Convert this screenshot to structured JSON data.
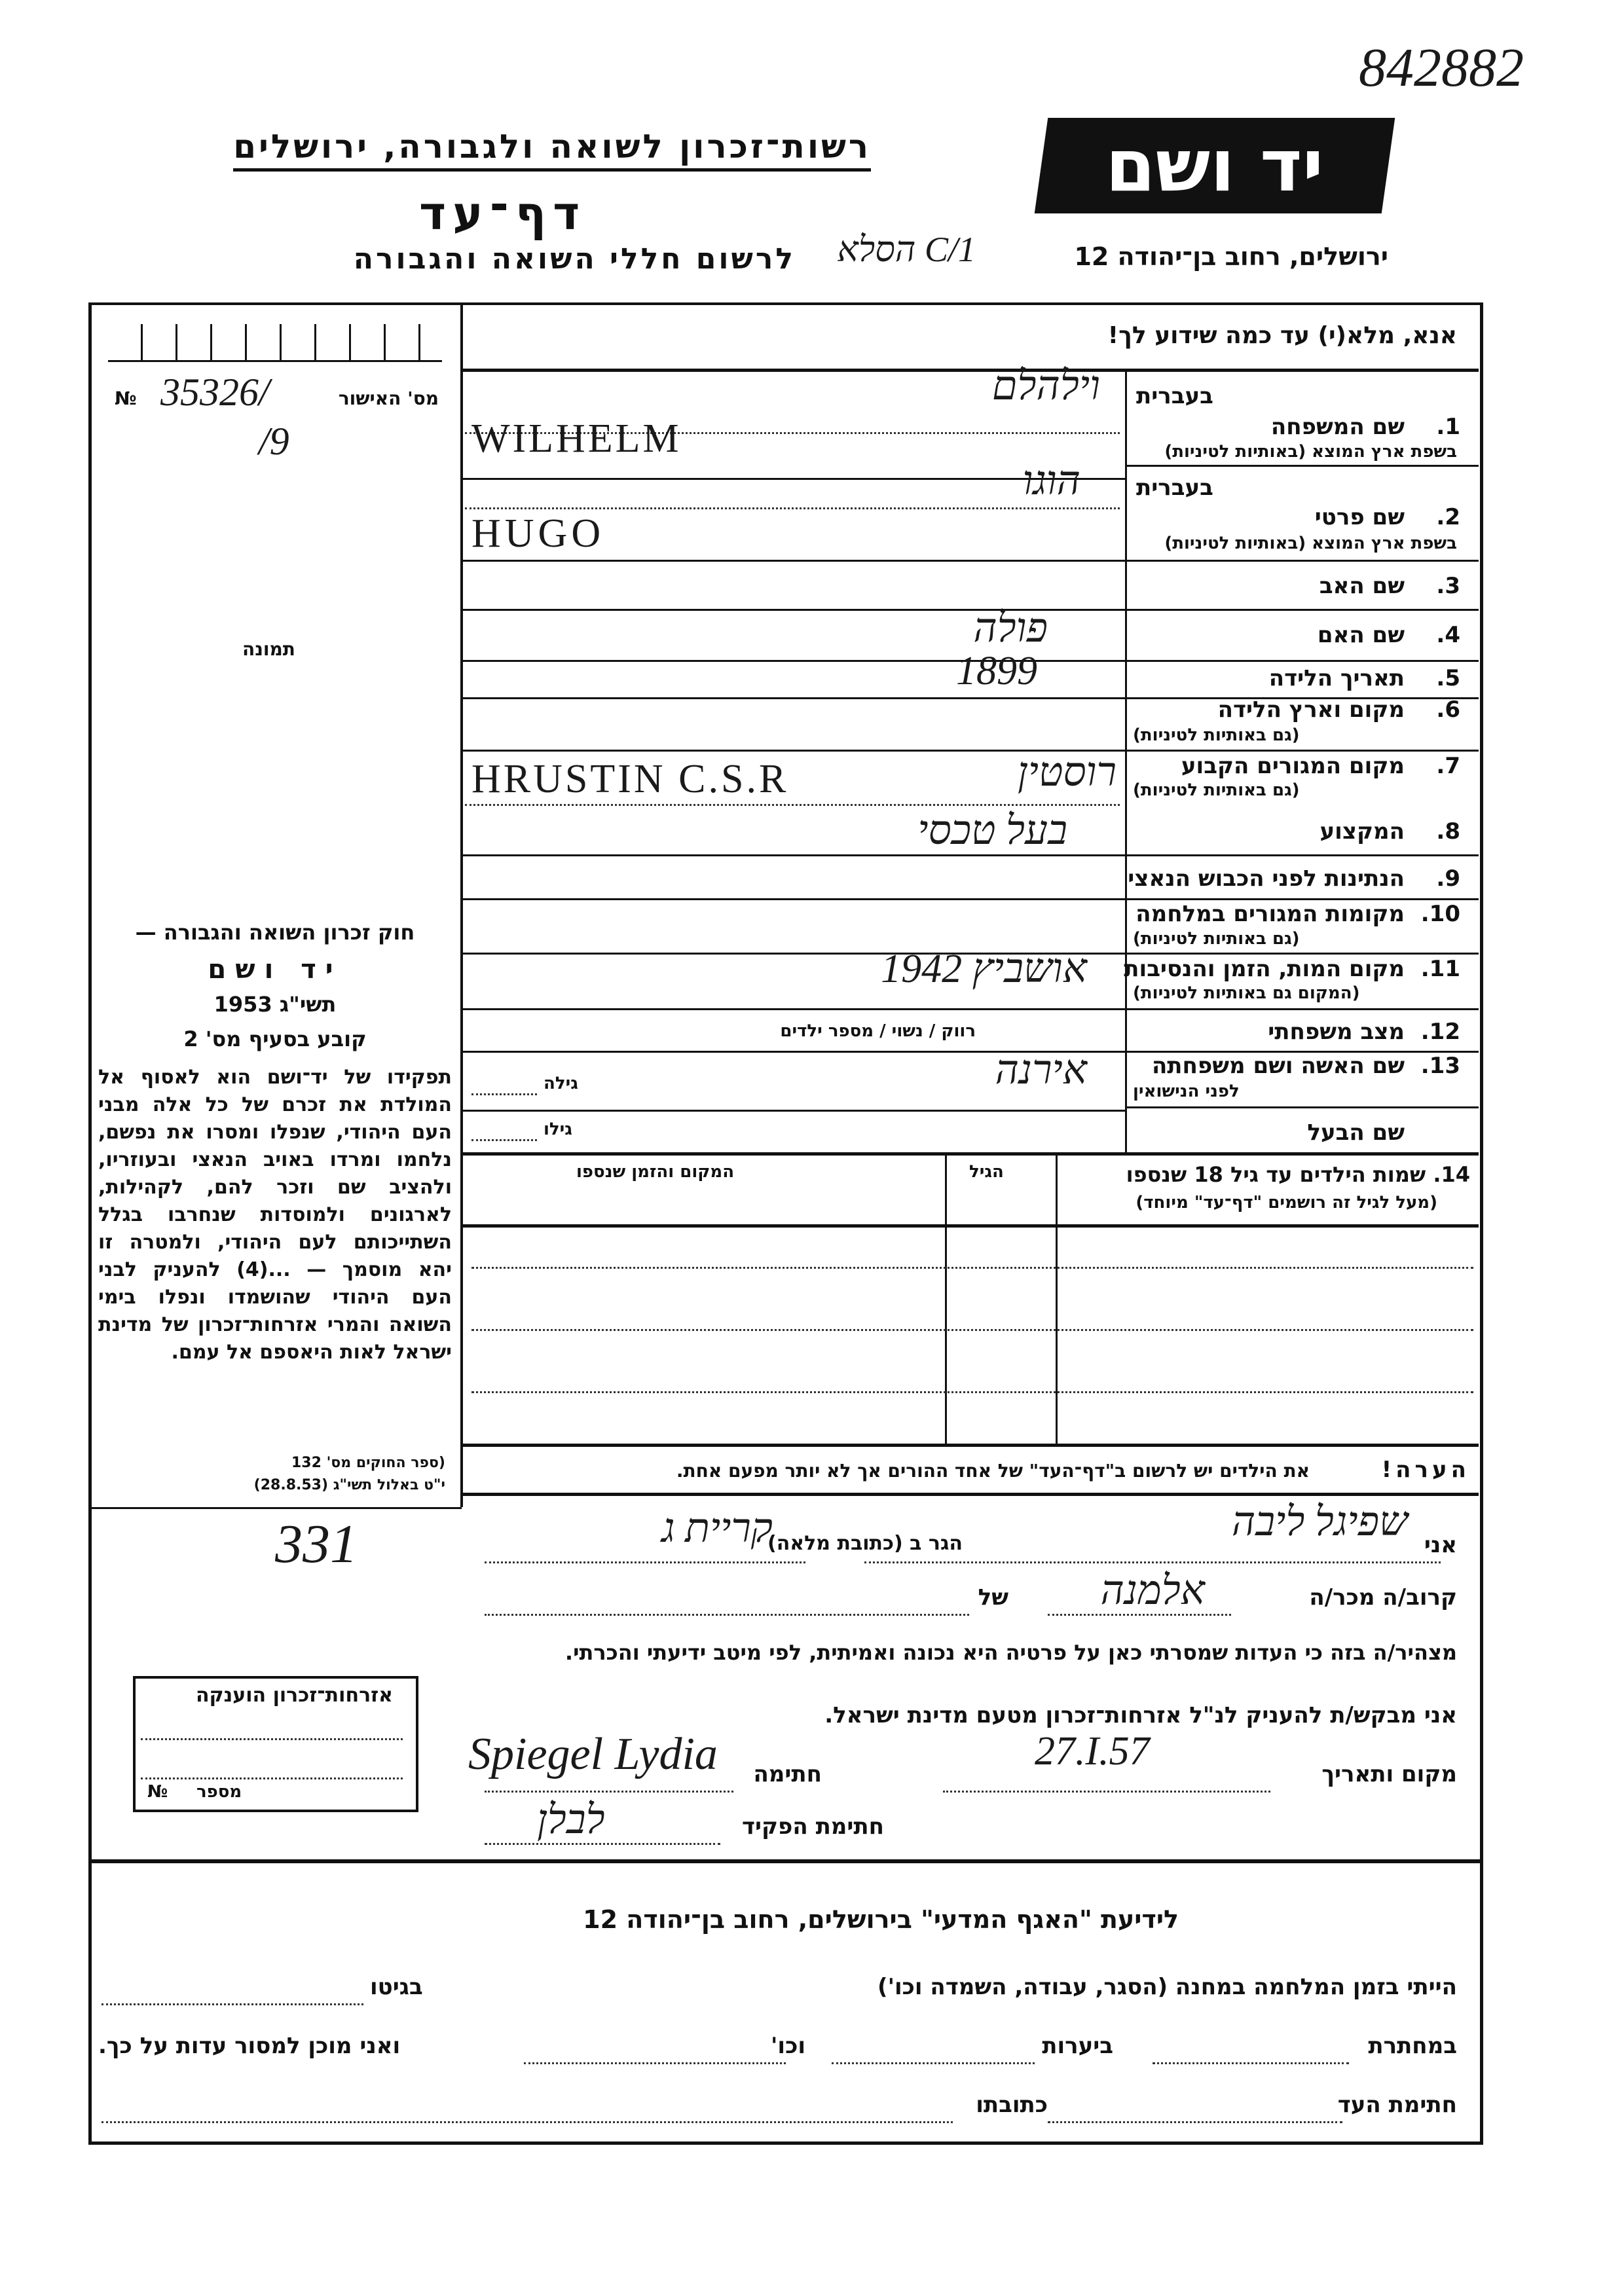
{
  "header": {
    "form_number": "842882",
    "logo_text": "יד ושם",
    "authority": "רשות־זכרון לשואה ולגבורה, ירושלים",
    "title": "דף־עד",
    "subtitle": "לרשום חללי השואה והגבורה",
    "address": "ירושלים, רחוב בן־יהודה 12",
    "handwritten_ref": "1/C הסלא"
  },
  "instruction": "אנא, מלא(י) עד כמה שידוע לך!",
  "approval": {
    "label": "מס' האישור",
    "no_sign": "№",
    "value": "35326/",
    "value2": "/9"
  },
  "photo_label": "תמונה",
  "law": {
    "title": "חוק זכרון השואה והגבורה —",
    "name": "יד ושם",
    "year": "תשי\"ג 1953",
    "clause": "קובע בסעיף מס' 2",
    "body": "תפקידו של יד־ושם הוא לאסוף אל המולדת את זכרם של כל אלה מבני העם היהודי, שנפלו ומסרו את נפשם, נלחמו ומרדו באויב הנאצי ובעוזריו, ולהציב שם וזכר להם, לקהילות, לארגונים ולמוסדות שנחרבו בגלל השתייכותם לעם היהודי, ולמטרה זו יהא מוסמך — ...(4) להעניק לבני העם היהודי שהושמדו ונפלו בימי השואה והמרי אזרחות־זכרון של מדינת ישראל לאות היאספם אל עמם.",
    "source1": "(ספר החוקים מס' 132",
    "source2": "י\"ט באלול תשי\"ג (28.8.53)"
  },
  "fields": [
    {
      "num": "1.",
      "label": "שם המשפחה",
      "hebrew_tag": "בעברית",
      "sub": "בשפת ארץ המוצא (באותיות לטיניות)",
      "value_he": "וילהלם",
      "value_lat": "WILHELM"
    },
    {
      "num": "2.",
      "label": "שם פרטי",
      "hebrew_tag": "בעברית",
      "sub": "בשפת ארץ המוצא (באותיות לטיניות)",
      "value_he": "הוגו",
      "value_lat": "HUGO"
    },
    {
      "num": "3.",
      "label": "שם האב"
    },
    {
      "num": "4.",
      "label": "שם האם",
      "value_he": "פולה"
    },
    {
      "num": "5.",
      "label": "תאריך הלידה",
      "value_he": "1899"
    },
    {
      "num": "6.",
      "label": "מקום וארץ הלידה",
      "sub": "(גם באותיות לטיניות)"
    },
    {
      "num": "7.",
      "label": "מקום המגורים הקבוע",
      "sub": "(גם באותיות לטיניות)",
      "value_he": "רוסטין",
      "value_lat": "HRUSTIN C.S.R"
    },
    {
      "num": "8.",
      "label": "המקצוע",
      "value_he": "בעל טכסי"
    },
    {
      "num": "9.",
      "label": "הנתינות לפני הכבוש הנאצי"
    },
    {
      "num": "10.",
      "label": "מקומות המגורים במלחמה",
      "sub": "(גם באותיות לטיניות)"
    },
    {
      "num": "11.",
      "label": "מקום המות, הזמן והנסיבות",
      "sub": "(המקום גם באותיות לטיניות)",
      "value_he": "אושביץ 1942"
    },
    {
      "num": "12.",
      "label": "מצב משפחתי",
      "options": "רווק / נשוי / מספר ילדים"
    },
    {
      "num": "13.",
      "label": "שם האשה ושם משפחתה",
      "sub": "לפני הנישואין",
      "value_he": "אירנה",
      "age_label": "גילה"
    },
    {
      "num": "",
      "label": "שם הבעל",
      "age_label": "גילו"
    }
  ],
  "children": {
    "label": "14. שמות הילדים עד גיל 18 שנספו",
    "sub": "(מעל לגיל זה רושמים \"דף־עד\" מיוחד)",
    "age_header": "הגיל",
    "place_header": "המקום והזמן שנספו"
  },
  "note": {
    "label": "הערה!",
    "text": "את הילדים יש לרשום ב\"דף־העד\" של אחד ההורים אך לא יותר מפעם אחת."
  },
  "declaration": {
    "i_label": "אני",
    "name_value": "שפיגל ליבה",
    "resides_label": "הגר ב (כתובת מלאה)",
    "address_value": "קריית ג",
    "margin_note": "331",
    "relative_label": "קרוב/ה מכר/ה",
    "of_label": "של",
    "relative_value": "אלמנה",
    "statement": "מצהיר/ה בזה כי העדות שמסרתי כאן על פרטיה היא נכונה ואמיתית, לפי מיטב ידיעתי והכרתי.",
    "request": "אני מבקש/ת להעניק לנ\"ל אזרחות־זכרון מטעם מדינת ישראל.",
    "place_date_label": "מקום ותאריך",
    "date_value": "27.I.57",
    "signature_label": "חתימה",
    "signature_value": "Spiegel Lydia",
    "officer_label": "חתימת הפקיד",
    "officer_value": "לבלן"
  },
  "citizenship_box": {
    "title": "אזרחות־זכרון הוענקה",
    "number_label": "מספר",
    "no_sign": "№"
  },
  "bottom": {
    "title": "לידיעת \"האגף המדעי\" בירושלים, רחוב בן־יהודה 12",
    "line1": "הייתי בזמן המלחמה במחנה (הסגר, עבודה, השמדה וכו')",
    "ghetto": "בגיטו",
    "underground": "במחתרת",
    "forests": "ביערות",
    "etc": "וכו'",
    "ready": "ואני מוכן למסור עדות על כך.",
    "witness_sig": "חתימת העד",
    "address": "כתובתו"
  }
}
